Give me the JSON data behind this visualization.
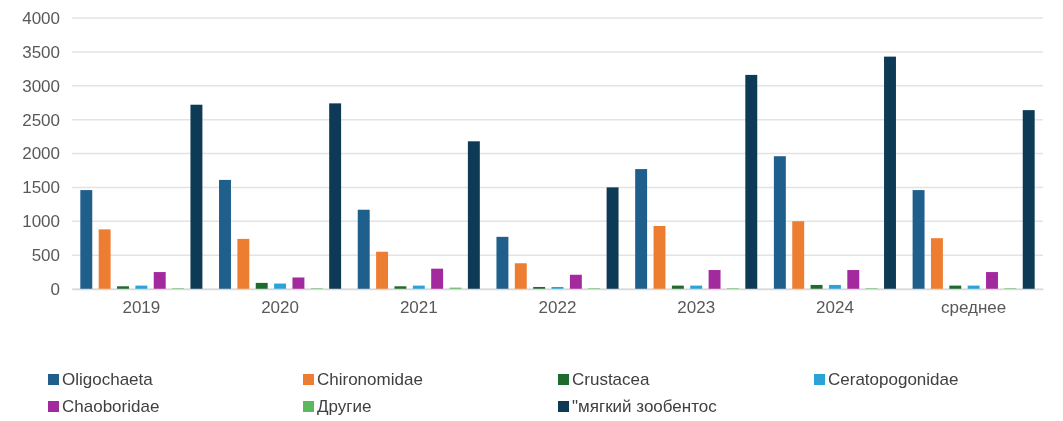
{
  "chart_data": {
    "type": "bar",
    "categories": [
      "2019",
      "2020",
      "2021",
      "2022",
      "2023",
      "2024",
      "среднее"
    ],
    "series": [
      {
        "name": "Oligochaeta",
        "color": "#1f5f8b",
        "values": [
          1460,
          1610,
          1170,
          770,
          1770,
          1960,
          1460
        ]
      },
      {
        "name": "Chironomidae",
        "color": "#ed7d31",
        "values": [
          880,
          740,
          550,
          380,
          930,
          1000,
          750
        ]
      },
      {
        "name": "Crustacea",
        "color": "#1e6b2e",
        "values": [
          40,
          90,
          40,
          30,
          50,
          60,
          50
        ]
      },
      {
        "name": "Ceratopogonidae",
        "color": "#2ba3d9",
        "values": [
          50,
          80,
          50,
          30,
          50,
          60,
          50
        ]
      },
      {
        "name": "Chaoboridae",
        "color": "#a3299f",
        "values": [
          250,
          170,
          300,
          210,
          280,
          280,
          250
        ]
      },
      {
        "name": "Другие",
        "color": "#5cb85c",
        "values": [
          10,
          10,
          20,
          10,
          10,
          10,
          10
        ]
      },
      {
        "name": "\"мягкий зообентос",
        "color": "#0d3a55",
        "values": [
          2720,
          2740,
          2180,
          1500,
          3160,
          3430,
          2640
        ]
      }
    ],
    "ylim": [
      0,
      4000
    ],
    "yticks": [
      0,
      500,
      1000,
      1500,
      2000,
      2500,
      3000,
      3500,
      4000
    ],
    "grid": "y",
    "legend": "bottom"
  }
}
